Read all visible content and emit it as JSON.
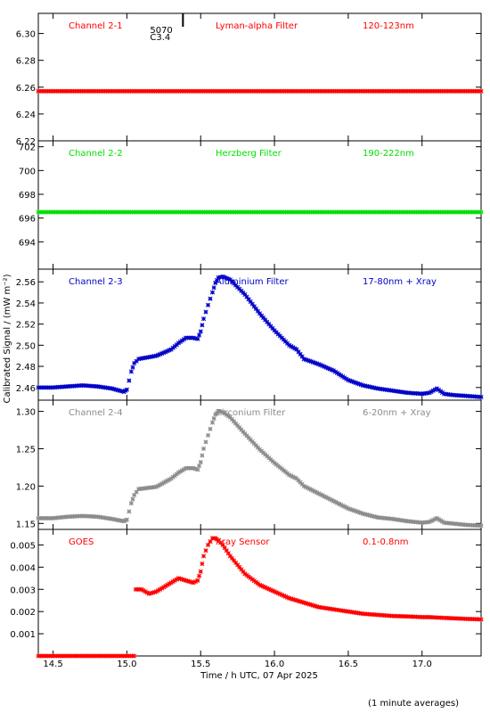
{
  "x_axis_label": "Time / h UTC, 07 Apr 2025",
  "y_axis_label": "Calibrated Signal / (mW m⁻²)",
  "footer_note": "(1 minute averages)",
  "marker": {
    "line1": "5070",
    "line2": "C3.4",
    "time": 15.38
  },
  "colors": {
    "red": "#ff0000",
    "green": "#00e000",
    "blue": "#0000c8",
    "gray": "#8c8c8c"
  },
  "chart_data": {
    "type": "scatter",
    "x_range": [
      14.4,
      17.4
    ],
    "x_ticks": [
      14.5,
      15.0,
      15.5,
      16.0,
      16.5,
      17.0
    ],
    "x_tick_labels": [
      "14.5",
      "15.0",
      "15.5",
      "16.0",
      "16.5",
      "17.0"
    ],
    "panels": [
      {
        "channel": "Channel 2-1",
        "filter": "Lyman-alpha Filter",
        "band": "120-123nm",
        "color": "#ff0000",
        "ylim": [
          6.22,
          6.315
        ],
        "y_ticks": [
          6.22,
          6.24,
          6.26,
          6.28,
          6.3
        ],
        "y_tick_labels": [
          "6.22",
          "6.24",
          "6.26",
          "6.28",
          "6.30"
        ],
        "x": [
          14.4,
          17.4
        ],
        "y": [
          6.257,
          6.257
        ]
      },
      {
        "channel": "Channel 2-2",
        "filter": "Herzberg Filter",
        "band": "190-222nm",
        "color": "#00e000",
        "ylim": [
          691.7,
          702.5
        ],
        "y_ticks": [
          694,
          696,
          698,
          700,
          702
        ],
        "y_tick_labels": [
          "694",
          "696",
          "698",
          "700",
          "702"
        ],
        "x": [
          14.4,
          17.4
        ],
        "y": [
          696.5,
          696.5
        ]
      },
      {
        "channel": "Channel 2-3",
        "filter": "Aluminium Filter",
        "band": "17-80nm + Xray",
        "color": "#0000c8",
        "ylim": [
          2.448,
          2.572
        ],
        "y_ticks": [
          2.46,
          2.48,
          2.5,
          2.52,
          2.54,
          2.56
        ],
        "y_tick_labels": [
          "2.46",
          "2.48",
          "2.50",
          "2.52",
          "2.54",
          "2.56"
        ],
        "x": [
          14.4,
          14.5,
          14.6,
          14.7,
          14.8,
          14.9,
          14.95,
          14.98,
          15.0,
          15.03,
          15.05,
          15.08,
          15.12,
          15.2,
          15.3,
          15.35,
          15.4,
          15.45,
          15.48,
          15.5,
          15.52,
          15.55,
          15.58,
          15.6,
          15.62,
          15.65,
          15.7,
          15.8,
          15.9,
          16.0,
          16.1,
          16.15,
          16.2,
          16.3,
          16.4,
          16.5,
          16.6,
          16.7,
          16.8,
          16.9,
          17.0,
          17.05,
          17.1,
          17.15,
          17.2,
          17.3,
          17.4
        ],
        "y": [
          2.46,
          2.46,
          2.461,
          2.462,
          2.461,
          2.459,
          2.457,
          2.456,
          2.458,
          2.475,
          2.483,
          2.487,
          2.488,
          2.49,
          2.496,
          2.502,
          2.507,
          2.507,
          2.506,
          2.513,
          2.525,
          2.538,
          2.55,
          2.559,
          2.564,
          2.565,
          2.562,
          2.548,
          2.53,
          2.514,
          2.5,
          2.496,
          2.487,
          2.482,
          2.476,
          2.467,
          2.462,
          2.459,
          2.457,
          2.455,
          2.454,
          2.455,
          2.459,
          2.454,
          2.453,
          2.452,
          2.451
        ]
      },
      {
        "channel": "Channel 2-4",
        "filter": "Zirconium Filter",
        "band": "6-20nm + Xray",
        "color": "#8c8c8c",
        "ylim": [
          1.142,
          1.315
        ],
        "y_ticks": [
          1.15,
          1.2,
          1.25,
          1.3
        ],
        "y_tick_labels": [
          "1.15",
          "1.20",
          "1.25",
          "1.30"
        ],
        "x": [
          14.4,
          14.5,
          14.6,
          14.7,
          14.8,
          14.9,
          14.95,
          14.98,
          15.0,
          15.03,
          15.05,
          15.08,
          15.12,
          15.2,
          15.3,
          15.35,
          15.4,
          15.45,
          15.48,
          15.5,
          15.52,
          15.55,
          15.58,
          15.6,
          15.62,
          15.65,
          15.7,
          15.8,
          15.9,
          16.0,
          16.1,
          16.15,
          16.2,
          16.3,
          16.4,
          16.5,
          16.6,
          16.7,
          16.8,
          16.9,
          17.0,
          17.05,
          17.1,
          17.15,
          17.2,
          17.3,
          17.4
        ],
        "y": [
          1.157,
          1.157,
          1.159,
          1.16,
          1.159,
          1.156,
          1.154,
          1.153,
          1.155,
          1.177,
          1.188,
          1.196,
          1.197,
          1.199,
          1.21,
          1.218,
          1.224,
          1.224,
          1.222,
          1.232,
          1.25,
          1.268,
          1.285,
          1.296,
          1.3,
          1.299,
          1.292,
          1.27,
          1.249,
          1.231,
          1.215,
          1.21,
          1.2,
          1.19,
          1.18,
          1.17,
          1.163,
          1.158,
          1.156,
          1.153,
          1.151,
          1.152,
          1.157,
          1.151,
          1.15,
          1.148,
          1.147
        ]
      },
      {
        "channel": "GOES",
        "filter": "Xray Sensor",
        "band": "0.1-0.8nm",
        "color": "#ff0000",
        "ylim": [
          0.0,
          0.0057
        ],
        "y_ticks": [
          0.001,
          0.002,
          0.003,
          0.004,
          0.005
        ],
        "y_tick_labels": [
          "0.001",
          "0.002",
          "0.003",
          "0.004",
          "0.005"
        ],
        "x": [
          14.4,
          15.05,
          15.06,
          15.1,
          15.15,
          15.2,
          15.25,
          15.3,
          15.35,
          15.4,
          15.45,
          15.48,
          15.5,
          15.52,
          15.55,
          15.58,
          15.6,
          15.62,
          15.65,
          15.7,
          15.75,
          15.8,
          15.9,
          16.0,
          16.1,
          16.2,
          16.3,
          16.4,
          16.5,
          16.6,
          16.7,
          16.8,
          16.9,
          17.0,
          17.05,
          17.1,
          17.2,
          17.3,
          17.4
        ],
        "y": [
          0.0,
          0.0,
          0.003,
          0.003,
          0.0028,
          0.0029,
          0.0031,
          0.0033,
          0.0035,
          0.0034,
          0.0033,
          0.0034,
          0.0038,
          0.0045,
          0.005,
          0.0053,
          0.0053,
          0.0052,
          0.005,
          0.0045,
          0.0041,
          0.0037,
          0.0032,
          0.0029,
          0.0026,
          0.0024,
          0.0022,
          0.0021,
          0.002,
          0.0019,
          0.00185,
          0.0018,
          0.00178,
          0.00175,
          0.00175,
          0.00173,
          0.0017,
          0.00167,
          0.00165
        ]
      }
    ]
  }
}
